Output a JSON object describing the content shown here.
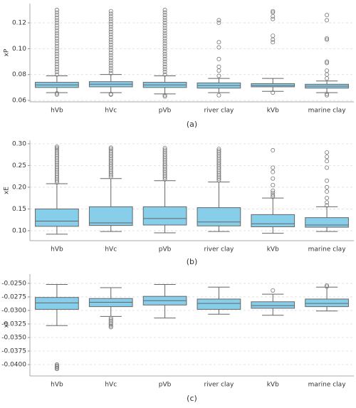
{
  "chart_data": [
    {
      "type": "box",
      "caption": "(a)",
      "ylabel": "xP",
      "color": "#87ceeb",
      "grid": true,
      "categories": [
        "hVb",
        "hVc",
        "pVb",
        "river clay",
        "kVb",
        "marine clay"
      ],
      "ylim": [
        0.0589,
        0.1349
      ],
      "yticks": [
        0.06,
        0.08,
        {
          "value": 0.1,
          "label": "0.10"
        },
        0.12
      ],
      "boxes": [
        {
          "whislo": 0.066,
          "q1": 0.07,
          "med": 0.072,
          "q3": 0.074,
          "whishi": 0.079,
          "fliers": [
            0.0645,
            0.0655,
            0.08,
            0.082,
            0.084,
            0.086,
            0.088,
            0.09,
            0.092,
            0.094,
            0.096,
            0.098,
            0.1,
            0.102,
            0.104,
            0.106,
            0.108,
            0.11,
            0.112,
            0.114,
            0.116,
            0.118,
            0.12,
            0.122,
            0.124,
            0.126,
            0.128,
            0.13
          ]
        },
        {
          "whislo": 0.066,
          "q1": 0.0705,
          "med": 0.0725,
          "q3": 0.0745,
          "whishi": 0.08,
          "fliers": [
            0.0645,
            0.065,
            0.081,
            0.083,
            0.085,
            0.087,
            0.089,
            0.091,
            0.093,
            0.095,
            0.097,
            0.099,
            0.101,
            0.103,
            0.105,
            0.107,
            0.109,
            0.111,
            0.113,
            0.115,
            0.117,
            0.119,
            0.121,
            0.123,
            0.125,
            0.127,
            0.129
          ]
        },
        {
          "whislo": 0.065,
          "q1": 0.07,
          "med": 0.072,
          "q3": 0.074,
          "whishi": 0.079,
          "fliers": [
            0.063,
            0.064,
            0.08,
            0.082,
            0.084,
            0.086,
            0.088,
            0.09,
            0.092,
            0.094,
            0.096,
            0.098,
            0.1,
            0.102,
            0.104,
            0.106,
            0.108,
            0.11,
            0.112,
            0.114,
            0.116,
            0.118,
            0.12,
            0.122,
            0.124,
            0.126,
            0.128,
            0.13
          ]
        },
        {
          "whislo": 0.066,
          "q1": 0.0695,
          "med": 0.0715,
          "q3": 0.0735,
          "whishi": 0.077,
          "fliers": [
            0.064,
            0.079,
            0.083,
            0.086,
            0.092,
            0.101,
            0.105,
            0.12,
            0.122
          ]
        },
        {
          "whislo": 0.067,
          "q1": 0.0705,
          "med": 0.0715,
          "q3": 0.073,
          "whishi": 0.077,
          "fliers": [
            0.066,
            0.105,
            0.107,
            0.11,
            0.123,
            0.125,
            0.128,
            0.129
          ]
        },
        {
          "whislo": 0.066,
          "q1": 0.0695,
          "med": 0.071,
          "q3": 0.0725,
          "whishi": 0.075,
          "fliers": [
            0.064,
            0.065,
            0.077,
            0.08,
            0.083,
            0.089,
            0.09,
            0.107,
            0.108,
            0.122,
            0.126
          ]
        }
      ]
    },
    {
      "type": "box",
      "caption": "(b)",
      "ylabel": "xE",
      "color": "#87ceeb",
      "grid": true,
      "categories": [
        "hVb",
        "hVc",
        "pVb",
        "river clay",
        "kVb",
        "marine clay"
      ],
      "ylim": [
        0.077,
        0.308
      ],
      "yticks": [
        {
          "value": 0.1,
          "label": "0.10"
        },
        0.15,
        {
          "value": 0.2,
          "label": "0.20"
        },
        0.25,
        {
          "value": 0.3,
          "label": "0.30"
        }
      ],
      "boxes": [
        {
          "whislo": 0.092,
          "q1": 0.11,
          "med": 0.122,
          "q3": 0.15,
          "whishi": 0.208,
          "fliers": [
            0.211,
            0.215,
            0.219,
            0.223,
            0.227,
            0.231,
            0.235,
            0.239,
            0.243,
            0.247,
            0.251,
            0.255,
            0.259,
            0.263,
            0.267,
            0.271,
            0.275,
            0.279,
            0.283,
            0.287,
            0.29,
            0.293
          ]
        },
        {
          "whislo": 0.098,
          "q1": 0.112,
          "med": 0.118,
          "q3": 0.155,
          "whishi": 0.22,
          "fliers": [
            0.224,
            0.228,
            0.232,
            0.236,
            0.24,
            0.244,
            0.248,
            0.252,
            0.256,
            0.26,
            0.264,
            0.268,
            0.272,
            0.276,
            0.28,
            0.284,
            0.288,
            0.291
          ]
        },
        {
          "whislo": 0.095,
          "q1": 0.113,
          "med": 0.128,
          "q3": 0.155,
          "whishi": 0.215,
          "fliers": [
            0.218,
            0.222,
            0.226,
            0.23,
            0.234,
            0.238,
            0.242,
            0.246,
            0.25,
            0.254,
            0.258,
            0.262,
            0.266,
            0.27,
            0.274,
            0.278,
            0.282,
            0.286,
            0.29
          ]
        },
        {
          "whislo": 0.098,
          "q1": 0.111,
          "med": 0.12,
          "q3": 0.153,
          "whishi": 0.212,
          "fliers": [
            0.216,
            0.22,
            0.224,
            0.228,
            0.232,
            0.236,
            0.24,
            0.244,
            0.248,
            0.252,
            0.256,
            0.26,
            0.264,
            0.268,
            0.272,
            0.276,
            0.28,
            0.284,
            0.288
          ]
        },
        {
          "whislo": 0.094,
          "q1": 0.109,
          "med": 0.116,
          "q3": 0.137,
          "whishi": 0.175,
          "fliers": [
            0.178,
            0.182,
            0.187,
            0.192,
            0.205,
            0.22,
            0.235,
            0.245,
            0.285
          ]
        },
        {
          "whislo": 0.098,
          "q1": 0.108,
          "med": 0.113,
          "q3": 0.13,
          "whishi": 0.155,
          "fliers": [
            0.158,
            0.165,
            0.175,
            0.19,
            0.2,
            0.215,
            0.245,
            0.26,
            0.27,
            0.28
          ]
        }
      ]
    },
    {
      "type": "box",
      "caption": "(c)",
      "ylabel": "xI",
      "color": "#87ceeb",
      "grid": true,
      "categories": [
        "hVb",
        "hVc",
        "pVb",
        "river clay",
        "kVb",
        "marine clay"
      ],
      "ylim": [
        -0.0421,
        -0.0233
      ],
      "yticks": [
        {
          "value": -0.025,
          "label": "-0.0250"
        },
        {
          "value": -0.0275,
          "label": "-0.0275"
        },
        {
          "value": -0.03,
          "label": "-0.0300"
        },
        {
          "value": -0.0325,
          "label": "-0.0325"
        },
        {
          "value": -0.035,
          "label": "-0.0350"
        },
        {
          "value": -0.0375,
          "label": "-0.0375"
        },
        {
          "value": -0.04,
          "label": "-0.0400"
        }
      ],
      "boxes": [
        {
          "whislo": -0.0328,
          "q1": -0.0298,
          "med": -0.0286,
          "q3": -0.0276,
          "whishi": -0.0252,
          "fliers": [
            -0.04,
            -0.0402,
            -0.0404,
            -0.0406,
            -0.0408
          ]
        },
        {
          "whislo": -0.0311,
          "q1": -0.0293,
          "med": -0.0285,
          "q3": -0.0278,
          "whishi": -0.0258,
          "fliers": [
            -0.0314,
            -0.0317,
            -0.032,
            -0.0323,
            -0.0326,
            -0.0329,
            -0.0331
          ]
        },
        {
          "whislo": -0.0314,
          "q1": -0.029,
          "med": -0.0282,
          "q3": -0.0274,
          "whishi": -0.0252,
          "fliers": []
        },
        {
          "whislo": -0.0307,
          "q1": -0.0298,
          "med": -0.0287,
          "q3": -0.0279,
          "whishi": -0.0257,
          "fliers": []
        },
        {
          "whislo": -0.0309,
          "q1": -0.0296,
          "med": -0.0291,
          "q3": -0.0284,
          "whishi": -0.027,
          "fliers": [
            -0.0263
          ]
        },
        {
          "whislo": -0.0301,
          "q1": -0.0293,
          "med": -0.0287,
          "q3": -0.0279,
          "whishi": -0.0257,
          "fliers": [
            -0.0254,
            -0.0256
          ]
        }
      ]
    }
  ]
}
